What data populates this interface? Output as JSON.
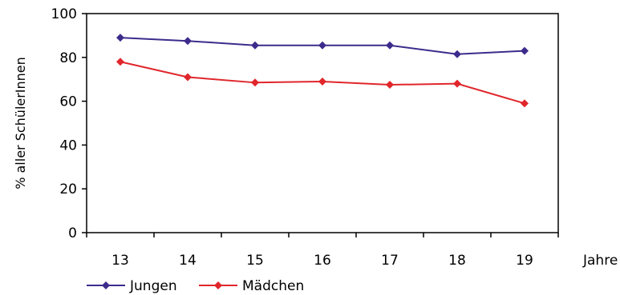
{
  "chart_data": {
    "type": "line",
    "categories": [
      "13",
      "14",
      "15",
      "16",
      "17",
      "18",
      "19"
    ],
    "xlabel": "Jahre",
    "ylabel": "% aller SchülerInnen",
    "ylim": [
      0,
      100
    ],
    "yticks": [
      "0",
      "20",
      "40",
      "60",
      "80",
      "100"
    ],
    "grid": false,
    "legend_position": "bottom-left",
    "series": [
      {
        "name": "Jungen",
        "color": "#3d2b8c",
        "values": [
          89,
          87.5,
          85.5,
          85.5,
          85.5,
          81.5,
          83
        ]
      },
      {
        "name": "Mädchen",
        "color": "#e0262b",
        "values": [
          78,
          71,
          68.5,
          69,
          67.5,
          68,
          59
        ]
      }
    ]
  }
}
